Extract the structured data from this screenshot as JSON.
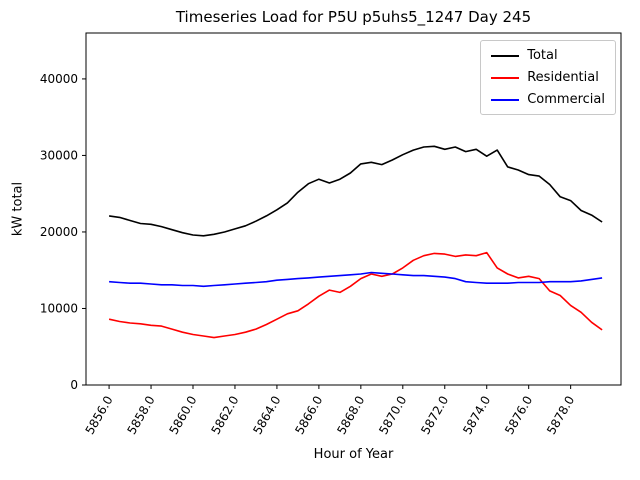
{
  "chart_data": {
    "type": "line",
    "title": "Timeseries Load for P5U p5uhs5_1247  Day 245",
    "xlabel": "Hour of Year",
    "ylabel": "kW total",
    "xlim": [
      5854.9,
      5880.4
    ],
    "ylim": [
      0,
      46000
    ],
    "grid": false,
    "legend_position": "upper right",
    "xticks": [
      5856,
      5858,
      5860,
      5862,
      5864,
      5866,
      5868,
      5870,
      5872,
      5874,
      5876,
      5878
    ],
    "xtick_labels": [
      "5856.0",
      "5858.0",
      "5860.0",
      "5862.0",
      "5864.0",
      "5866.0",
      "5868.0",
      "5870.0",
      "5872.0",
      "5874.0",
      "5876.0",
      "5878.0"
    ],
    "yticks": [
      0,
      10000,
      20000,
      30000,
      40000
    ],
    "ytick_labels": [
      "0",
      "10000",
      "20000",
      "30000",
      "40000"
    ],
    "x": [
      5856.0,
      5856.5,
      5857.0,
      5857.5,
      5858.0,
      5858.5,
      5859.0,
      5859.5,
      5860.0,
      5860.5,
      5861.0,
      5861.5,
      5862.0,
      5862.5,
      5863.0,
      5863.5,
      5864.0,
      5864.5,
      5865.0,
      5865.5,
      5866.0,
      5866.5,
      5867.0,
      5867.5,
      5868.0,
      5868.5,
      5869.0,
      5869.5,
      5870.0,
      5870.5,
      5871.0,
      5871.5,
      5872.0,
      5872.5,
      5873.0,
      5873.5,
      5874.0,
      5874.5,
      5875.0,
      5875.5,
      5876.0,
      5876.5,
      5877.0,
      5877.5,
      5878.0,
      5878.5,
      5879.0,
      5879.5
    ],
    "series": [
      {
        "name": "Total",
        "color": "#000000",
        "values": [
          22100,
          21900,
          21500,
          21100,
          21000,
          20700,
          20300,
          19900,
          19600,
          19500,
          19700,
          20000,
          20400,
          20800,
          21400,
          22100,
          22900,
          23800,
          25200,
          26300,
          26900,
          26400,
          26900,
          27700,
          28900,
          29100,
          28800,
          29400,
          30100,
          30700,
          31100,
          31200,
          30800,
          31100,
          30500,
          30800,
          29900,
          30700,
          28500,
          28100,
          27500,
          27300,
          26200,
          24600,
          24100,
          22800,
          22200,
          21300
        ]
      },
      {
        "name": "Residential",
        "color": "#ff0000",
        "values": [
          8600,
          8300,
          8100,
          8000,
          7800,
          7700,
          7300,
          6900,
          6600,
          6400,
          6200,
          6400,
          6600,
          6900,
          7300,
          7900,
          8600,
          9300,
          9700,
          10600,
          11600,
          12400,
          12100,
          12900,
          13900,
          14500,
          14200,
          14500,
          15300,
          16300,
          16900,
          17200,
          17100,
          16800,
          17000,
          16900,
          17300,
          15300,
          14500,
          14000,
          14200,
          13900,
          12300,
          11700,
          10400,
          9500,
          8200,
          7200
        ]
      },
      {
        "name": "Commercial",
        "color": "#0000ff",
        "values": [
          13500,
          13400,
          13300,
          13300,
          13200,
          13100,
          13100,
          13000,
          13000,
          12900,
          13000,
          13100,
          13200,
          13300,
          13400,
          13500,
          13700,
          13800,
          13900,
          14000,
          14100,
          14200,
          14300,
          14400,
          14500,
          14700,
          14600,
          14500,
          14400,
          14300,
          14300,
          14200,
          14100,
          13900,
          13500,
          13400,
          13300,
          13300,
          13300,
          13400,
          13400,
          13400,
          13500,
          13500,
          13500,
          13600,
          13800,
          14000
        ]
      }
    ]
  }
}
